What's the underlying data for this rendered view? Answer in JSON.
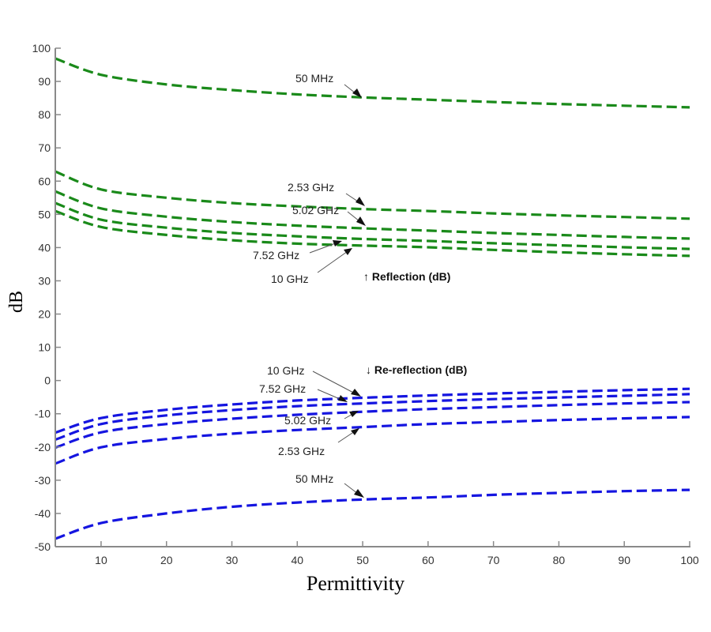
{
  "chart_data": {
    "type": "line",
    "title": "",
    "xlabel": "Permittivity",
    "ylabel": "dB",
    "xlim": [
      3,
      100
    ],
    "ylim": [
      -50,
      100
    ],
    "xticks": [
      10,
      20,
      30,
      40,
      50,
      60,
      70,
      80,
      90,
      100
    ],
    "yticks": [
      100,
      90,
      80,
      70,
      60,
      50,
      40,
      30,
      20,
      10,
      0,
      -10,
      -20,
      -30,
      -40,
      -50
    ],
    "grid": false,
    "x": [
      3,
      10,
      20,
      30,
      40,
      50,
      60,
      70,
      80,
      90,
      100
    ],
    "series": [
      {
        "name": "Reflection 50 MHz",
        "group": "reflection",
        "color": "#1a8a1a",
        "values": [
          96.9,
          92.0,
          89.1,
          87.4,
          86.1,
          85.2,
          84.5,
          83.8,
          83.2,
          82.7,
          82.2
        ]
      },
      {
        "name": "Reflection 2.53 GHz",
        "group": "reflection",
        "color": "#1a8a1a",
        "values": [
          62.9,
          57.5,
          55.0,
          53.4,
          52.4,
          51.6,
          51.0,
          50.3,
          49.7,
          49.2,
          48.7
        ]
      },
      {
        "name": "Reflection 5.02 GHz",
        "group": "reflection",
        "color": "#1a8a1a",
        "values": [
          56.9,
          51.8,
          49.3,
          47.7,
          46.6,
          45.8,
          45.1,
          44.4,
          43.8,
          43.2,
          42.7
        ]
      },
      {
        "name": "Reflection 7.52 GHz",
        "group": "reflection",
        "color": "#1a8a1a",
        "values": [
          53.4,
          48.4,
          46.0,
          44.4,
          43.4,
          42.6,
          42.0,
          41.3,
          40.7,
          40.1,
          39.6
        ]
      },
      {
        "name": "Reflection 10 GHz",
        "group": "reflection",
        "color": "#1a8a1a",
        "values": [
          51.0,
          46.2,
          43.8,
          42.2,
          41.2,
          40.6,
          40.1,
          39.3,
          38.6,
          38.0,
          37.5
        ]
      },
      {
        "name": "Re-reflection 10 GHz",
        "group": "re-reflection",
        "color": "#1515e0",
        "values": [
          -15.7,
          -11.3,
          -8.8,
          -7.2,
          -6.0,
          -5.2,
          -4.5,
          -3.9,
          -3.4,
          -2.9,
          -2.5
        ]
      },
      {
        "name": "Re-reflection 7.52 GHz",
        "group": "re-reflection",
        "color": "#1515e0",
        "values": [
          -17.8,
          -13.1,
          -10.5,
          -8.9,
          -7.7,
          -6.9,
          -6.2,
          -5.6,
          -5.1,
          -4.6,
          -4.1
        ]
      },
      {
        "name": "Re-reflection 5.02 GHz",
        "group": "re-reflection",
        "color": "#1515e0",
        "values": [
          -20.2,
          -15.6,
          -13.1,
          -11.5,
          -10.3,
          -9.4,
          -8.6,
          -8.0,
          -7.4,
          -6.9,
          -6.5
        ]
      },
      {
        "name": "Re-reflection 2.53 GHz",
        "group": "re-reflection",
        "color": "#1515e0",
        "values": [
          -25.0,
          -20.1,
          -17.6,
          -16.0,
          -14.9,
          -14.0,
          -13.1,
          -12.5,
          -11.9,
          -11.4,
          -11.0
        ]
      },
      {
        "name": "Re-reflection 50 MHz",
        "group": "re-reflection",
        "color": "#1515e0",
        "values": [
          -47.6,
          -42.9,
          -40.0,
          -38.0,
          -36.7,
          -35.8,
          -35.2,
          -34.4,
          -33.8,
          -33.3,
          -32.9
        ]
      }
    ],
    "annotations": [
      {
        "text": "50 MHz",
        "points_to": "Reflection 50 MHz"
      },
      {
        "text": "2.53 GHz",
        "points_to": "Reflection 2.53 GHz"
      },
      {
        "text": "5.02 GHz",
        "points_to": "Reflection 5.02 GHz"
      },
      {
        "text": "7.52 GHz",
        "points_to": "Reflection 7.52 GHz"
      },
      {
        "text": "10 GHz",
        "points_to": "Reflection 10 GHz"
      },
      {
        "text": "↑ Reflection (dB)",
        "points_to": "reflection group"
      },
      {
        "text": "↓ Re-reflection (dB)",
        "points_to": "re-reflection group"
      },
      {
        "text": "10 GHz",
        "points_to": "Re-reflection 10 GHz"
      },
      {
        "text": "7.52 GHz",
        "points_to": "Re-reflection 7.52 GHz"
      },
      {
        "text": "5.02 GHz",
        "points_to": "Re-reflection 5.02 GHz"
      },
      {
        "text": "2.53 GHz",
        "points_to": "Re-reflection 2.53 GHz"
      },
      {
        "text": "50 MHz",
        "points_to": "Re-reflection 50 MHz"
      }
    ]
  }
}
